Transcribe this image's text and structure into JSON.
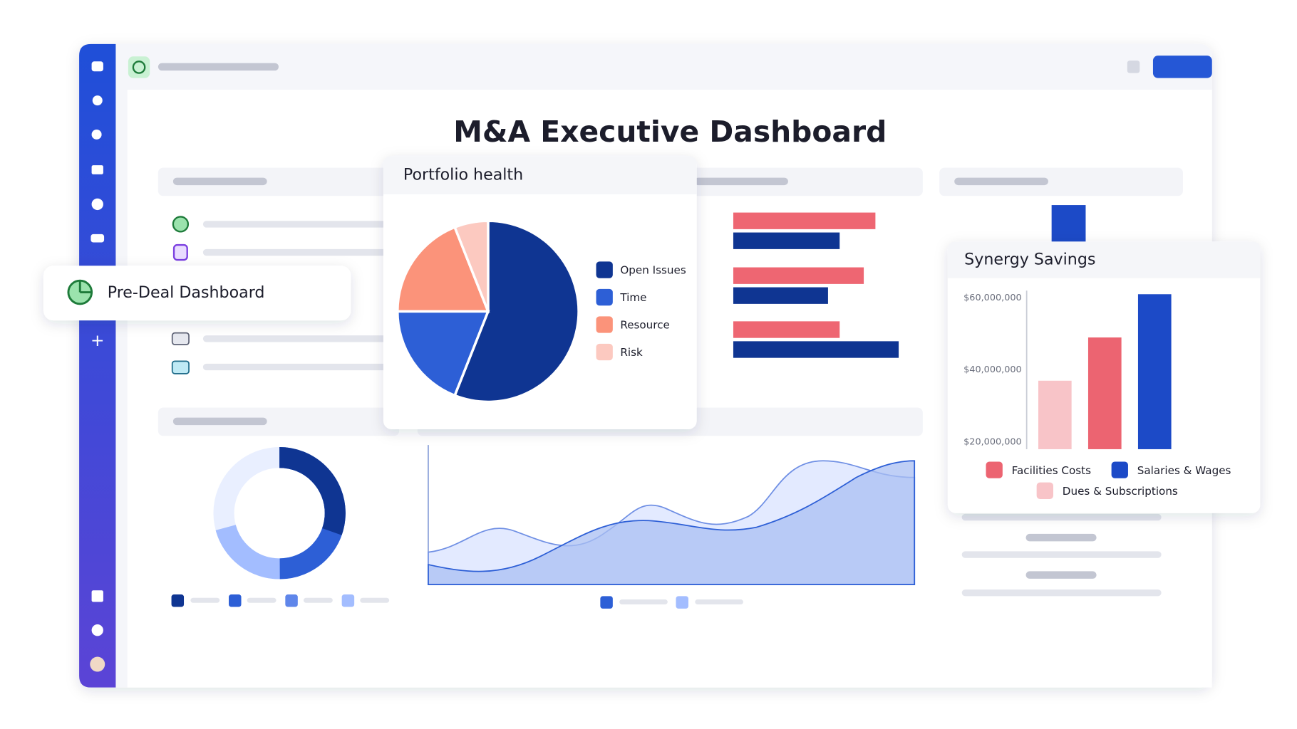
{
  "page_title": "M&A Executive Dashboard",
  "popup": "Pre-Deal Dashboard",
  "chart_data": [
    {
      "type": "pie",
      "title": "Portfolio health",
      "categories": [
        "Open Issues",
        "Time",
        "Resource",
        "Risk"
      ],
      "values": [
        56,
        19,
        19,
        6
      ],
      "colors": [
        "#0f3592",
        "#2d5fd6",
        "#fb937a",
        "#fcc9c0"
      ]
    },
    {
      "type": "bar",
      "title": "Synergy Savings",
      "series": [
        {
          "name": "Dues & Subscriptions",
          "color": "#f8c4c8",
          "values": [
            37000000
          ]
        },
        {
          "name": "Facilities Costs",
          "color": "#ec6471",
          "values": [
            49000000
          ]
        },
        {
          "name": "Salaries & Wages",
          "color": "#1c4ac7",
          "values": [
            61000000
          ]
        }
      ],
      "ylim": [
        18000000,
        62000000
      ],
      "yticks": [
        {
          "value": 20000000,
          "label": "$20,000,000"
        },
        {
          "value": 40000000,
          "label": "$40,000,000"
        },
        {
          "value": 60000000,
          "label": "$60,000,000"
        }
      ]
    }
  ]
}
